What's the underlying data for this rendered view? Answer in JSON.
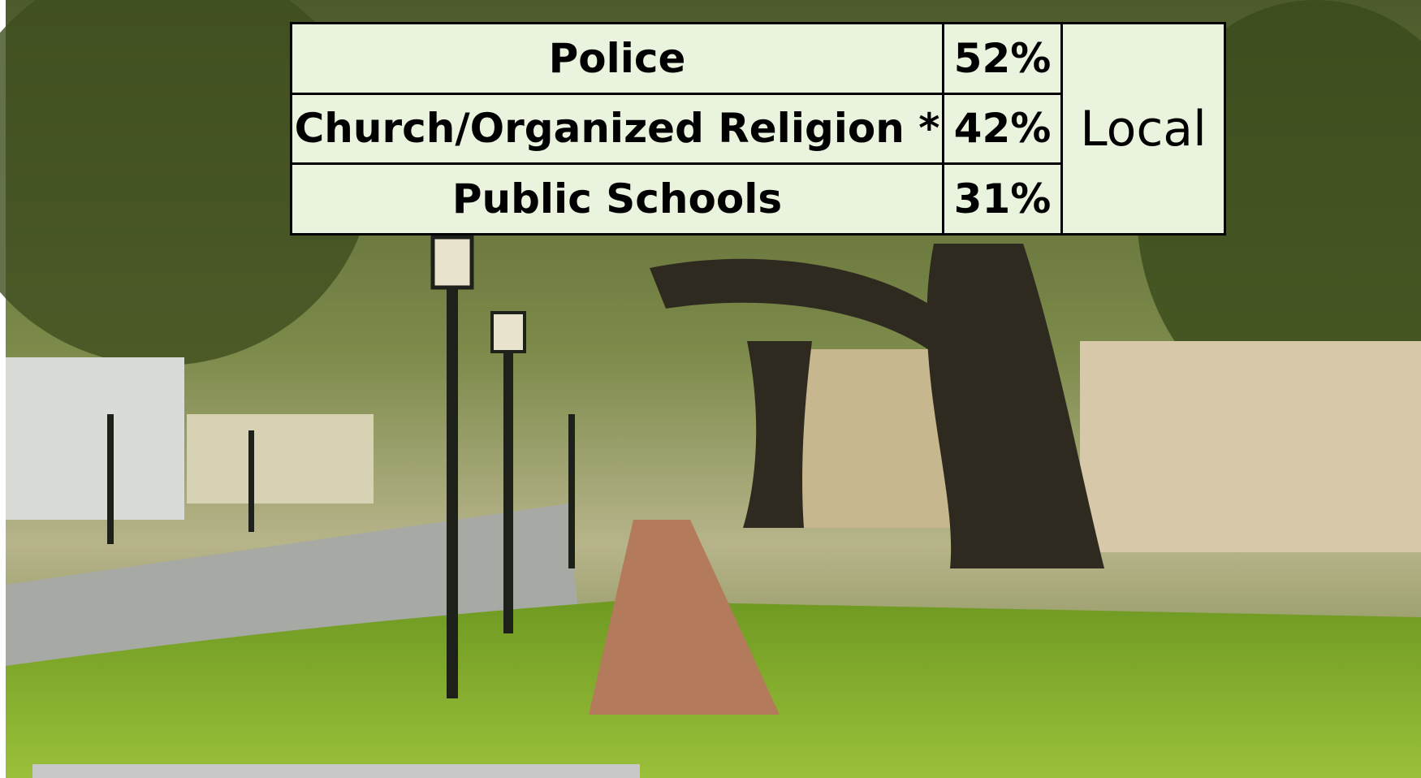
{
  "table": {
    "rows": [
      [
        "Police",
        "52%"
      ],
      [
        "Church/Organized Religion *",
        "42%"
      ],
      [
        "Public Schools",
        "31%"
      ]
    ],
    "group": "Local"
  }
}
